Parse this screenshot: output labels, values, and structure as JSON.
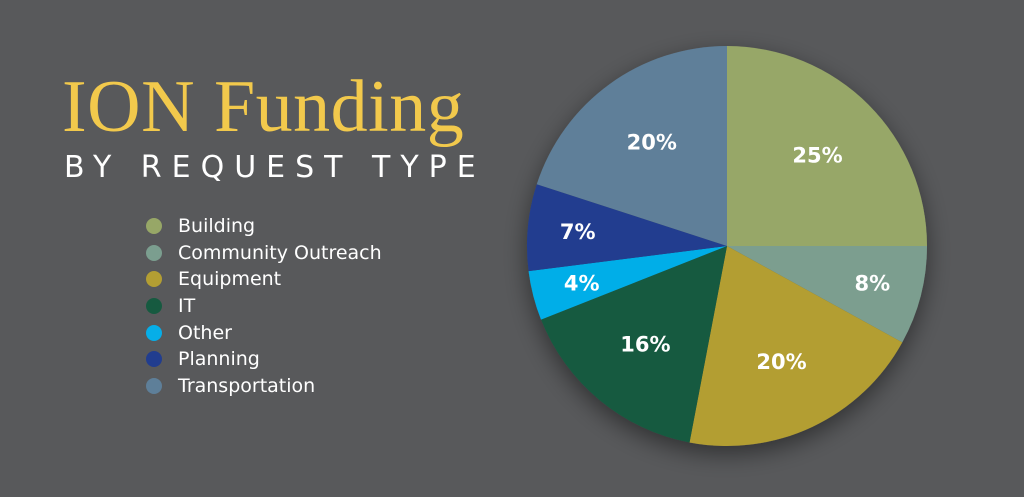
{
  "title": "ION Funding",
  "subtitle": "BY REQUEST TYPE",
  "colors": {
    "background": "#58595b",
    "title": "#f2c94c"
  },
  "chart_data": {
    "type": "pie",
    "title": "ION Funding",
    "subtitle": "BY REQUEST TYPE",
    "legend": "left",
    "slices": [
      {
        "label": "Building",
        "value": 25,
        "display": "25%",
        "color": "#97a767"
      },
      {
        "label": "Community Outreach",
        "value": 8,
        "display": "8%",
        "color": "#7b9e8f"
      },
      {
        "label": "Equipment",
        "value": 20,
        "display": "20%",
        "color": "#b39e33"
      },
      {
        "label": "IT",
        "value": 16,
        "display": "16%",
        "color": "#165a40"
      },
      {
        "label": "Other",
        "value": 4,
        "display": "4%",
        "color": "#06aee8"
      },
      {
        "label": "Planning",
        "value": 7,
        "display": "7%",
        "color": "#213d8f"
      },
      {
        "label": "Transportation",
        "value": 20,
        "display": "20%",
        "color": "#5e7f99"
      }
    ]
  }
}
